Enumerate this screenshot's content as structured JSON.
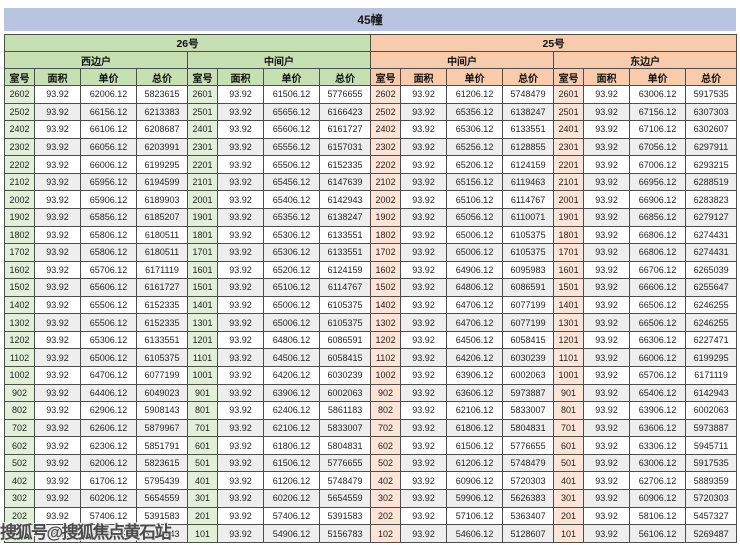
{
  "title": "45幢",
  "watermark": {
    "text": "搜狐号@搜狐焦点黄石站"
  },
  "colors": {
    "title_bg": "#b9c4e1",
    "green_header": "#c6e0b4",
    "green_light": "#e2efd9",
    "orange_header": "#f8cbad",
    "orange_light": "#fce4d6",
    "stripe": "#eeeeee",
    "border": "#4d4d4d"
  },
  "table": {
    "columns": [
      "室号",
      "面积",
      "单价",
      "总价"
    ],
    "sections": [
      {
        "building": "26号",
        "units": [
          {
            "name": "西边户",
            "rows": [
              [
                "2602",
                "93.92",
                "62006.12",
                "5823615"
              ],
              [
                "2502",
                "93.92",
                "66156.12",
                "6213383"
              ],
              [
                "2402",
                "93.92",
                "66106.12",
                "6208687"
              ],
              [
                "2302",
                "93.92",
                "66056.12",
                "6203991"
              ],
              [
                "2202",
                "93.92",
                "66006.12",
                "6199295"
              ],
              [
                "2102",
                "93.92",
                "65956.12",
                "6194599"
              ],
              [
                "2002",
                "93.92",
                "65906.12",
                "6189903"
              ],
              [
                "1902",
                "93.92",
                "65856.12",
                "6185207"
              ],
              [
                "1802",
                "93.92",
                "65806.12",
                "6180511"
              ],
              [
                "1702",
                "93.92",
                "65806.12",
                "6180511"
              ],
              [
                "1602",
                "93.92",
                "65706.12",
                "6171119"
              ],
              [
                "1502",
                "93.92",
                "65606.12",
                "6161727"
              ],
              [
                "1402",
                "93.92",
                "65506.12",
                "6152335"
              ],
              [
                "1302",
                "93.92",
                "65506.12",
                "6152335"
              ],
              [
                "1202",
                "93.92",
                "65306.12",
                "6133551"
              ],
              [
                "1102",
                "93.92",
                "65006.12",
                "6105375"
              ],
              [
                "1002",
                "93.92",
                "64706.12",
                "6077199"
              ],
              [
                "902",
                "93.92",
                "64406.12",
                "6049023"
              ],
              [
                "802",
                "93.92",
                "62906.12",
                "5908143"
              ],
              [
                "702",
                "93.92",
                "62606.12",
                "5879967"
              ],
              [
                "602",
                "93.92",
                "62306.12",
                "5851791"
              ],
              [
                "502",
                "93.92",
                "62006.12",
                "5823615"
              ],
              [
                "402",
                "93.92",
                "61706.12",
                "5795439"
              ],
              [
                "302",
                "93.92",
                "60206.12",
                "5654559"
              ],
              [
                "202",
                "93.92",
                "57406.12",
                "5391583"
              ],
              [
                "102",
                "93.92",
                "55406.12",
                "5203743"
              ]
            ]
          },
          {
            "name": "中间户",
            "rows": [
              [
                "2601",
                "93.92",
                "61506.12",
                "5776655"
              ],
              [
                "2501",
                "93.92",
                "65656.12",
                "6166423"
              ],
              [
                "2401",
                "93.92",
                "65606.12",
                "6161727"
              ],
              [
                "2301",
                "93.92",
                "65556.12",
                "6157031"
              ],
              [
                "2201",
                "93.92",
                "65506.12",
                "6152335"
              ],
              [
                "2101",
                "93.92",
                "65456.12",
                "6147639"
              ],
              [
                "2001",
                "93.92",
                "65406.12",
                "6142943"
              ],
              [
                "1901",
                "93.92",
                "65356.12",
                "6138247"
              ],
              [
                "1801",
                "93.92",
                "65306.12",
                "6133551"
              ],
              [
                "1701",
                "93.92",
                "65306.12",
                "6133551"
              ],
              [
                "1601",
                "93.92",
                "65206.12",
                "6124159"
              ],
              [
                "1501",
                "93.92",
                "65106.12",
                "6114767"
              ],
              [
                "1401",
                "93.92",
                "65006.12",
                "6105375"
              ],
              [
                "1301",
                "93.92",
                "65006.12",
                "6105375"
              ],
              [
                "1201",
                "93.92",
                "64806.12",
                "6086591"
              ],
              [
                "1101",
                "93.92",
                "64506.12",
                "6058415"
              ],
              [
                "1001",
                "93.92",
                "64206.12",
                "6030239"
              ],
              [
                "901",
                "93.92",
                "63906.12",
                "6002063"
              ],
              [
                "801",
                "93.92",
                "62406.12",
                "5861183"
              ],
              [
                "701",
                "93.92",
                "62106.12",
                "5833007"
              ],
              [
                "601",
                "93.92",
                "61806.12",
                "5804831"
              ],
              [
                "501",
                "93.92",
                "61506.12",
                "5776655"
              ],
              [
                "401",
                "93.92",
                "61206.12",
                "5748479"
              ],
              [
                "301",
                "93.92",
                "60206.12",
                "5654559"
              ],
              [
                "201",
                "93.92",
                "57406.12",
                "5391583"
              ],
              [
                "101",
                "93.92",
                "54906.12",
                "5156783"
              ]
            ]
          }
        ]
      },
      {
        "building": "25号",
        "units": [
          {
            "name": "中间户",
            "rows": [
              [
                "2602",
                "93.92",
                "61206.12",
                "5748479"
              ],
              [
                "2502",
                "93.92",
                "65356.12",
                "6138247"
              ],
              [
                "2402",
                "93.92",
                "65306.12",
                "6133551"
              ],
              [
                "2302",
                "93.92",
                "65256.12",
                "6128855"
              ],
              [
                "2202",
                "93.92",
                "65206.12",
                "6124159"
              ],
              [
                "2102",
                "93.92",
                "65156.12",
                "6119463"
              ],
              [
                "2002",
                "93.92",
                "65106.12",
                "6114767"
              ],
              [
                "1902",
                "93.92",
                "65056.12",
                "6110071"
              ],
              [
                "1802",
                "93.92",
                "65006.12",
                "6105375"
              ],
              [
                "1702",
                "93.92",
                "65006.12",
                "6105375"
              ],
              [
                "1602",
                "93.92",
                "64906.12",
                "6095983"
              ],
              [
                "1502",
                "93.92",
                "64806.12",
                "6086591"
              ],
              [
                "1402",
                "93.92",
                "64706.12",
                "6077199"
              ],
              [
                "1302",
                "93.92",
                "64706.12",
                "6077199"
              ],
              [
                "1202",
                "93.92",
                "64506.12",
                "6058415"
              ],
              [
                "1102",
                "93.92",
                "64206.12",
                "6030239"
              ],
              [
                "1002",
                "93.92",
                "63906.12",
                "6002063"
              ],
              [
                "902",
                "93.92",
                "63606.12",
                "5973887"
              ],
              [
                "802",
                "93.92",
                "62106.12",
                "5833007"
              ],
              [
                "702",
                "93.92",
                "61806.12",
                "5804831"
              ],
              [
                "602",
                "93.92",
                "61506.12",
                "5776655"
              ],
              [
                "502",
                "93.92",
                "61206.12",
                "5748479"
              ],
              [
                "402",
                "93.92",
                "60906.12",
                "5720303"
              ],
              [
                "302",
                "93.92",
                "59906.12",
                "5626383"
              ],
              [
                "202",
                "93.92",
                "57106.12",
                "5363407"
              ],
              [
                "102",
                "93.92",
                "54606.12",
                "5128607"
              ]
            ]
          },
          {
            "name": "东边户",
            "rows": [
              [
                "2601",
                "93.92",
                "63006.12",
                "5917535"
              ],
              [
                "2501",
                "93.92",
                "67156.12",
                "6307303"
              ],
              [
                "2401",
                "93.92",
                "67106.12",
                "6302607"
              ],
              [
                "2301",
                "93.92",
                "67056.12",
                "6297911"
              ],
              [
                "2201",
                "93.92",
                "67006.12",
                "6293215"
              ],
              [
                "2101",
                "93.92",
                "66956.12",
                "6288519"
              ],
              [
                "2001",
                "93.92",
                "66906.12",
                "6283823"
              ],
              [
                "1901",
                "93.92",
                "66856.12",
                "6279127"
              ],
              [
                "1801",
                "93.92",
                "66806.12",
                "6274431"
              ],
              [
                "1701",
                "93.92",
                "66806.12",
                "6274431"
              ],
              [
                "1601",
                "93.92",
                "66706.12",
                "6265039"
              ],
              [
                "1501",
                "93.92",
                "66606.12",
                "6255647"
              ],
              [
                "1401",
                "93.92",
                "66506.12",
                "6246255"
              ],
              [
                "1301",
                "93.92",
                "66506.12",
                "6246255"
              ],
              [
                "1201",
                "93.92",
                "66306.12",
                "6227471"
              ],
              [
                "1101",
                "93.92",
                "66006.12",
                "6199295"
              ],
              [
                "1001",
                "93.92",
                "65706.12",
                "6171119"
              ],
              [
                "901",
                "93.92",
                "65406.12",
                "6142943"
              ],
              [
                "801",
                "93.92",
                "63906.12",
                "6002063"
              ],
              [
                "701",
                "93.92",
                "63606.12",
                "5973887"
              ],
              [
                "601",
                "93.92",
                "63306.12",
                "5945711"
              ],
              [
                "501",
                "93.92",
                "63006.12",
                "5917535"
              ],
              [
                "401",
                "93.92",
                "62706.12",
                "5889359"
              ],
              [
                "301",
                "93.92",
                "60906.12",
                "5720303"
              ],
              [
                "201",
                "93.92",
                "58106.12",
                "5457327"
              ],
              [
                "101",
                "93.92",
                "56106.12",
                "5269487"
              ]
            ]
          }
        ]
      }
    ]
  }
}
